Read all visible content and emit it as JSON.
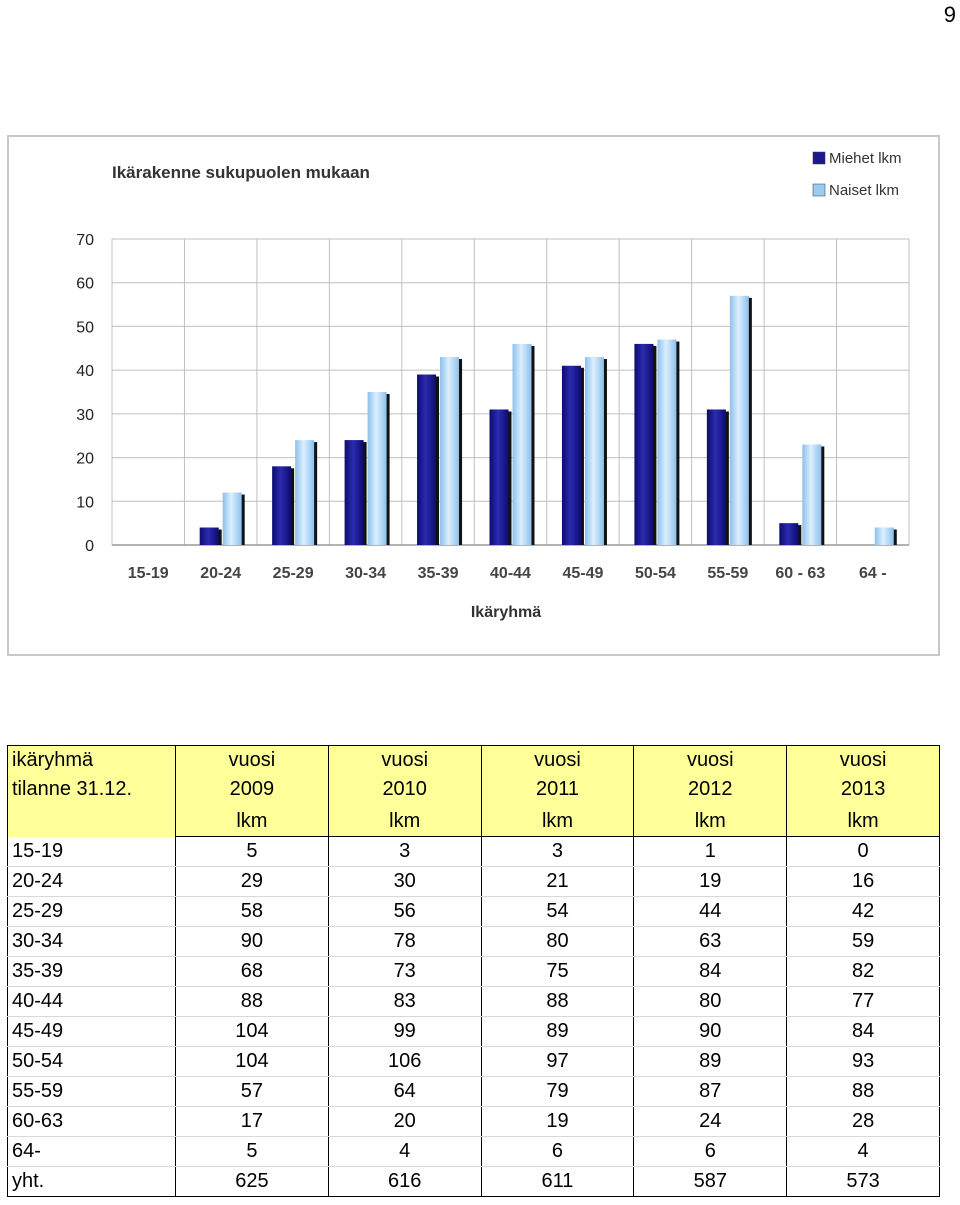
{
  "page_number": "9",
  "chart_data": {
    "type": "bar",
    "title": "Ikärakenne sukupuolen mukaan",
    "xlabel": "Ikäryhmä",
    "ylabel": "",
    "ylim": [
      0,
      70
    ],
    "yticks": [
      0,
      10,
      20,
      30,
      40,
      50,
      60,
      70
    ],
    "grid": true,
    "legend_position": "top-right",
    "categories": [
      "15-19",
      "20-24",
      "25-29",
      "30-34",
      "35-39",
      "40-44",
      "45-49",
      "50-54",
      "55-59",
      "60 - 63",
      "64 -"
    ],
    "series": [
      {
        "name": "Miehet lkm",
        "color": "#1a1a8c",
        "values": [
          0,
          4,
          18,
          24,
          39,
          31,
          41,
          46,
          31,
          5,
          0
        ]
      },
      {
        "name": "Naiset lkm",
        "color": "#9ccbf2",
        "values": [
          0,
          12,
          24,
          35,
          43,
          46,
          43,
          47,
          57,
          23,
          4
        ]
      }
    ]
  },
  "table": {
    "header_col1_line1": "ikäryhmä",
    "header_col1_line2": "tilanne 31.12.",
    "years": [
      {
        "label": "vuosi",
        "year": "2009",
        "unit": "lkm"
      },
      {
        "label": "vuosi",
        "year": "2010",
        "unit": "lkm"
      },
      {
        "label": "vuosi",
        "year": "2011",
        "unit": "lkm"
      },
      {
        "label": "vuosi",
        "year": "2012",
        "unit": "lkm"
      },
      {
        "label": "vuosi",
        "year": "2013",
        "unit": "lkm"
      }
    ],
    "rows": [
      {
        "group": "15-19",
        "values": [
          "5",
          "3",
          "3",
          "1",
          "0"
        ]
      },
      {
        "group": "20-24",
        "values": [
          "29",
          "30",
          "21",
          "19",
          "16"
        ]
      },
      {
        "group": "25-29",
        "values": [
          "58",
          "56",
          "54",
          "44",
          "42"
        ]
      },
      {
        "group": "30-34",
        "values": [
          "90",
          "78",
          "80",
          "63",
          "59"
        ]
      },
      {
        "group": "35-39",
        "values": [
          "68",
          "73",
          "75",
          "84",
          "82"
        ]
      },
      {
        "group": "40-44",
        "values": [
          "88",
          "83",
          "88",
          "80",
          "77"
        ]
      },
      {
        "group": "45-49",
        "values": [
          "104",
          "99",
          "89",
          "90",
          "84"
        ]
      },
      {
        "group": "50-54",
        "values": [
          "104",
          "106",
          "97",
          "89",
          "93"
        ]
      },
      {
        "group": "55-59",
        "values": [
          "57",
          "64",
          "79",
          "87",
          "88"
        ]
      },
      {
        "group": "60-63",
        "values": [
          "17",
          "20",
          "19",
          "24",
          "28"
        ]
      },
      {
        "group": "64-",
        "values": [
          "5",
          "4",
          "6",
          "6",
          "4"
        ]
      },
      {
        "group": "yht.",
        "values": [
          "625",
          "616",
          "611",
          "587",
          "573"
        ]
      }
    ]
  }
}
